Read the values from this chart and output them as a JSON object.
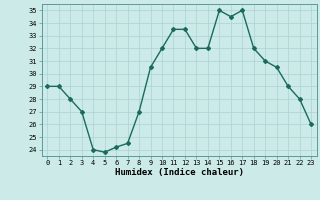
{
  "x": [
    0,
    1,
    2,
    3,
    4,
    5,
    6,
    7,
    8,
    9,
    10,
    11,
    12,
    13,
    14,
    15,
    16,
    17,
    18,
    19,
    20,
    21,
    22,
    23
  ],
  "y": [
    29,
    29,
    28,
    27,
    24,
    23.8,
    24.2,
    24.5,
    27,
    30.5,
    32,
    33.5,
    33.5,
    32,
    32,
    35,
    34.5,
    35,
    32,
    31,
    30.5,
    29,
    28,
    26
  ],
  "line_color": "#1a6b5a",
  "marker": "D",
  "marker_size": 2,
  "bg_color": "#cceae8",
  "grid_color": "#aad4d0",
  "xlabel": "Humidex (Indice chaleur)",
  "xlim": [
    -0.5,
    23.5
  ],
  "ylim": [
    23.5,
    35.5
  ],
  "yticks": [
    24,
    25,
    26,
    27,
    28,
    29,
    30,
    31,
    32,
    33,
    34,
    35
  ],
  "xticks": [
    0,
    1,
    2,
    3,
    4,
    5,
    6,
    7,
    8,
    9,
    10,
    11,
    12,
    13,
    14,
    15,
    16,
    17,
    18,
    19,
    20,
    21,
    22,
    23
  ]
}
